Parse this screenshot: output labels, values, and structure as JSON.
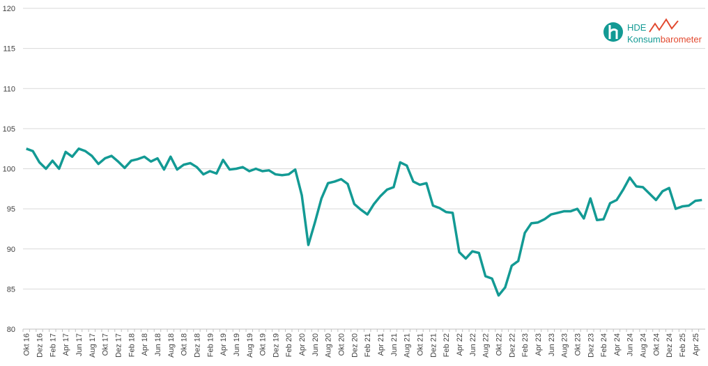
{
  "chart_data": {
    "type": "line",
    "categories": [
      "Okt 16",
      null,
      "Dez 16",
      null,
      "Feb 17",
      null,
      "Apr 17",
      null,
      "Jun 17",
      null,
      "Aug 17",
      null,
      "Okt 17",
      null,
      "Dez 17",
      null,
      "Feb 18",
      null,
      "Apr 18",
      null,
      "Jun 18",
      null,
      "Aug 18",
      null,
      "Okt 18",
      null,
      "Dez 18",
      null,
      "Feb 19",
      null,
      "Apr 19",
      null,
      "Jun 19",
      null,
      "Aug 19",
      null,
      "Okt 19",
      null,
      "Dez 19",
      null,
      "Feb 20",
      null,
      "Apr 20",
      null,
      "Jun 20",
      null,
      "Aug 20",
      null,
      "Okt 20",
      null,
      "Dez 20",
      null,
      "Feb 21",
      null,
      "Apr 21",
      null,
      "Jun 21",
      null,
      "Aug 21",
      null,
      "Okt 21",
      null,
      "Dez 21",
      null,
      "Feb 22",
      null,
      "Apr 22",
      null,
      "Jun 22",
      null,
      "Aug 22",
      null,
      "Okt 22",
      null,
      "Dez 22",
      null,
      "Feb 23",
      null,
      "Apr 23",
      null,
      "Jun 23",
      null,
      "Aug 23",
      null,
      "Okt 23",
      null,
      "Dez 23",
      null,
      "Feb 24",
      null,
      "Apr 24",
      null,
      "Jun 24",
      null,
      "Aug 24",
      null,
      "Okt 24",
      null,
      "Dez 24",
      null,
      "Feb 25",
      null,
      "Apr 25",
      null
    ],
    "values": [
      102.5,
      102.2,
      100.8,
      100.0,
      101.0,
      100.0,
      102.1,
      101.5,
      102.5,
      102.2,
      101.6,
      100.6,
      101.3,
      101.6,
      100.9,
      100.1,
      101.0,
      101.2,
      101.5,
      100.9,
      101.3,
      99.9,
      101.5,
      99.9,
      100.5,
      100.7,
      100.2,
      99.3,
      99.7,
      99.4,
      101.1,
      99.9,
      100.0,
      100.2,
      99.7,
      100.0,
      99.7,
      99.8,
      99.3,
      99.2,
      99.3,
      99.9,
      96.7,
      90.5,
      93.3,
      96.3,
      98.2,
      98.4,
      98.7,
      98.1,
      95.6,
      94.9,
      94.3,
      95.6,
      96.6,
      97.4,
      97.7,
      100.8,
      100.4,
      98.4,
      98.0,
      98.2,
      95.4,
      95.1,
      94.6,
      94.5,
      89.6,
      88.8,
      89.7,
      89.5,
      86.6,
      86.3,
      84.2,
      85.2,
      87.9,
      88.5,
      92.0,
      93.2,
      93.3,
      93.7,
      94.3,
      94.5,
      94.7,
      94.7,
      95.0,
      93.8,
      96.3,
      93.6,
      93.7,
      95.7,
      96.1,
      97.4,
      98.9,
      97.8,
      97.7,
      96.9,
      96.1,
      97.2,
      97.6,
      95.0,
      95.3,
      95.4,
      96.0,
      96.1
    ],
    "color": "#139a94",
    "ylim": [
      80,
      120
    ],
    "yticks": [
      80,
      85,
      90,
      95,
      100,
      105,
      110,
      115,
      120
    ],
    "grid": true
  },
  "logo": {
    "brand": "HDE",
    "name": "Konsum",
    "suffix": "barometer"
  }
}
